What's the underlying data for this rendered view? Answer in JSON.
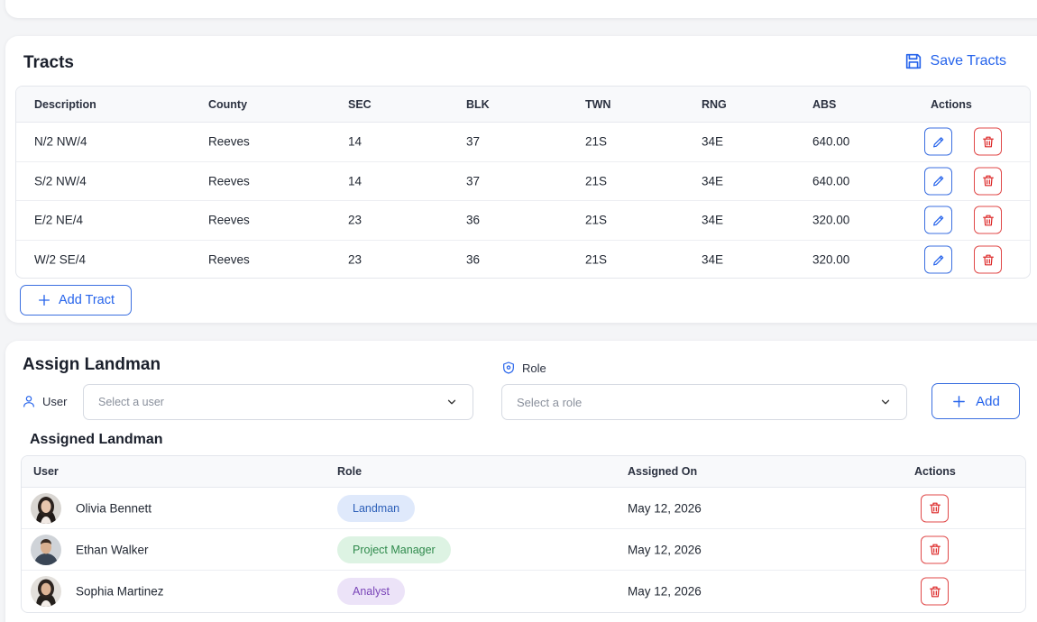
{
  "tracts": {
    "title": "Tracts",
    "save_label": "Save Tracts",
    "columns": [
      "Description",
      "County",
      "SEC",
      "BLK",
      "TWN",
      "RNG",
      "ABS",
      "Actions"
    ],
    "rows": [
      [
        "N/2 NW/4",
        "Reeves",
        "14",
        "37",
        "21S",
        "34E",
        "640.00"
      ],
      [
        "S/2 NW/4",
        "Reeves",
        "14",
        "37",
        "21S",
        "34E",
        "640.00"
      ],
      [
        "E/2 NE/4",
        "Reeves",
        "23",
        "36",
        "21S",
        "34E",
        "320.00"
      ],
      [
        "W/2 SE/4",
        "Reeves",
        "23",
        "36",
        "21S",
        "34E",
        "320.00"
      ]
    ],
    "add_label": "Add Tract"
  },
  "assign": {
    "title": "Assign Landman",
    "user_label": "User",
    "user_placeholder": "Select a user",
    "role_label": "Role",
    "role_placeholder": "Select a role",
    "add_label": "Add"
  },
  "assigned": {
    "title": "Assigned Landman",
    "columns": [
      "User",
      "Role",
      "Assigned On",
      "Actions"
    ],
    "rows": [
      {
        "name": "Olivia Bennett",
        "role": "Landman",
        "date": "May 12, 2026",
        "role_bg": "#dfe9fb",
        "role_fg": "#2c5fb8"
      },
      {
        "name": "Ethan Walker",
        "role": "Project Manager",
        "date": "May 12, 2026",
        "role_bg": "#ddf3e3",
        "role_fg": "#2f8a4c"
      },
      {
        "name": "Sophia Martinez",
        "role": "Analyst",
        "date": "May 12, 2026",
        "role_bg": "#ece3f8",
        "role_fg": "#7a45b8"
      }
    ]
  },
  "icons": {
    "save": "floppy-disk-icon",
    "edit": "pencil-icon",
    "delete": "trash-icon",
    "add": "plus-icon",
    "user": "user-icon",
    "role": "shield-icon",
    "dropdown": "chevron-down-icon"
  },
  "colors": {
    "accent": "#2563eb",
    "danger": "#dc2626"
  }
}
